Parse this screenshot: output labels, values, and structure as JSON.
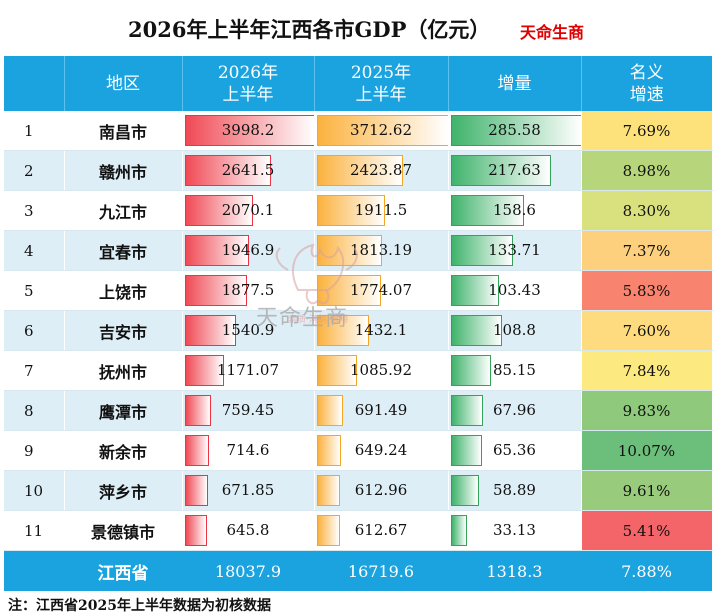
{
  "title": "2026年上半年江西各市GDP（亿元）",
  "brand": "天命生商",
  "headers": {
    "region": "地区",
    "gdp2026_line1": "2026年",
    "gdp2026_line2": "上半年",
    "gdp2025_line1": "2025年",
    "gdp2025_line2": "上半年",
    "increase": "增量",
    "rate_line1": "名义",
    "rate_line2": "增速"
  },
  "rows": [
    {
      "rank": "1",
      "region": "南昌市",
      "gdp2026": "3998.2",
      "gdp2025": "3712.62",
      "increase": "285.58",
      "rate": "7.69%",
      "rate_color": "#fde27c"
    },
    {
      "rank": "2",
      "region": "赣州市",
      "gdp2026": "2641.5",
      "gdp2025": "2423.87",
      "increase": "217.63",
      "rate": "8.98%",
      "rate_color": "#b7d67b"
    },
    {
      "rank": "3",
      "region": "九江市",
      "gdp2026": "2070.1",
      "gdp2025": "1911.5",
      "increase": "158.6",
      "rate": "8.30%",
      "rate_color": "#d9e17f"
    },
    {
      "rank": "4",
      "region": "宜春市",
      "gdp2026": "1946.9",
      "gdp2025": "1813.19",
      "increase": "133.71",
      "rate": "7.37%",
      "rate_color": "#fdd07e"
    },
    {
      "rank": "5",
      "region": "上饶市",
      "gdp2026": "1877.5",
      "gdp2025": "1774.07",
      "increase": "103.43",
      "rate": "5.83%",
      "rate_color": "#f8836f"
    },
    {
      "rank": "6",
      "region": "吉安市",
      "gdp2026": "1540.9",
      "gdp2025": "1432.1",
      "increase": "108.8",
      "rate": "7.60%",
      "rate_color": "#fedb7e"
    },
    {
      "rank": "7",
      "region": "抚州市",
      "gdp2026": "1171.07",
      "gdp2025": "1085.92",
      "increase": "85.15",
      "rate": "7.84%",
      "rate_color": "#fce980"
    },
    {
      "rank": "8",
      "region": "鹰潭市",
      "gdp2026": "759.45",
      "gdp2025": "691.49",
      "increase": "67.96",
      "rate": "9.83%",
      "rate_color": "#8ec97c"
    },
    {
      "rank": "9",
      "region": "新余市",
      "gdp2026": "714.6",
      "gdp2025": "649.24",
      "increase": "65.36",
      "rate": "10.07%",
      "rate_color": "#6cbf7b"
    },
    {
      "rank": "10",
      "region": "萍乡市",
      "gdp2026": "671.85",
      "gdp2025": "612.96",
      "increase": "58.89",
      "rate": "9.61%",
      "rate_color": "#99cb7c"
    },
    {
      "rank": "11",
      "region": "景德镇市",
      "gdp2026": "645.8",
      "gdp2025": "612.67",
      "increase": "33.13",
      "rate": "5.41%",
      "rate_color": "#f4656a"
    }
  ],
  "total": {
    "region": "江西省",
    "gdp2026": "18037.9",
    "gdp2025": "16719.6",
    "increase": "1318.3",
    "rate": "7.88%"
  },
  "footnote": "注：江西省2025年上半年数据为初核数据",
  "watermark": {
    "caption": "天命生商"
  },
  "colors": {
    "header_bg": "#1ba3e0",
    "bar_red": "#f04a55",
    "bar_orange": "#fbb23e",
    "bar_green": "#3fb36b",
    "brand": "#e00000"
  }
}
